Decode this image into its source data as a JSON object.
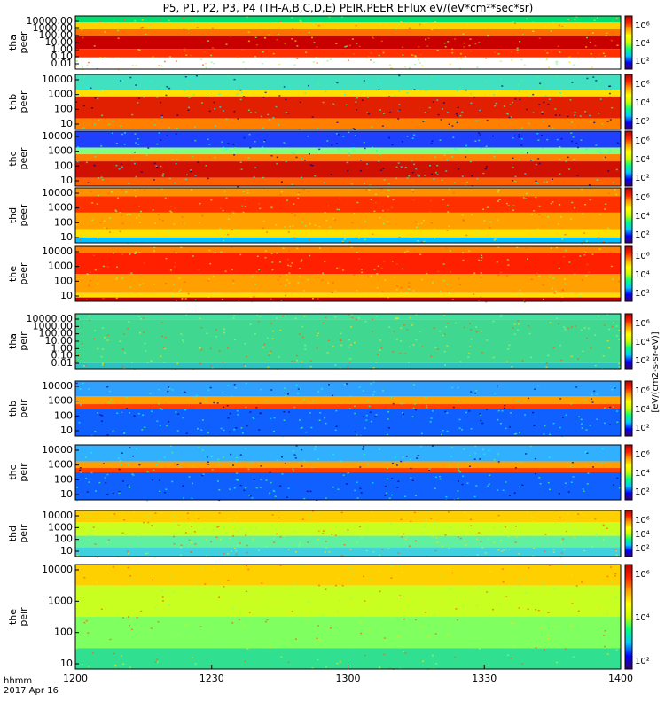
{
  "title": "P5, P1, P2, P3, P4 (TH-A,B,C,D,E) PEIR,PEER EFlux eV/(eV*cm²*sec*sr)",
  "footer": {
    "time_label": "hhmm",
    "date_label": "2017 Apr 16"
  },
  "chart_data": {
    "type": "heatmap",
    "title": "P5, P1, P2, P3, P4 (TH-A,B,C,D,E) PEIR,PEER EFlux eV/(eV*cm²*sec*sr)",
    "xlabel": "hhmm",
    "x_ticks": [
      "1200",
      "1230",
      "1300",
      "1330",
      "1400"
    ],
    "x_range": [
      "1200",
      "1400"
    ],
    "colorbar_label": "[eV/(cm2-s-sr-eV)]",
    "colorscale": [
      "#3b0066",
      "#0000ff",
      "#00c8ff",
      "#00ff7f",
      "#c8ff00",
      "#ffff00",
      "#ffa000",
      "#ff2000",
      "#c00000"
    ],
    "panels": [
      {
        "name": "tha peer",
        "ylabel": [
          "tha",
          "peer"
        ],
        "y_ticks": [
          "10000.00",
          "1000.00",
          "100.00",
          "10.00",
          "1.00",
          "0.10",
          "0.01"
        ],
        "y_log": true,
        "colorbar_ticks": [
          "10⁶",
          "10⁴",
          "10²"
        ]
      },
      {
        "name": "thb peer",
        "ylabel": [
          "thb",
          "peer"
        ],
        "y_ticks": [
          "10000",
          "1000",
          "100",
          "10"
        ],
        "y_log": true,
        "colorbar_ticks": [
          "10⁶",
          "10⁴",
          "10²"
        ]
      },
      {
        "name": "thc peer",
        "ylabel": [
          "thc",
          "peer"
        ],
        "y_ticks": [
          "10000",
          "1000",
          "100",
          "10"
        ],
        "y_log": true,
        "colorbar_ticks": [
          "10⁶",
          "10⁴",
          "10²"
        ]
      },
      {
        "name": "thd peer",
        "ylabel": [
          "thd",
          "peer"
        ],
        "y_ticks": [
          "10000",
          "1000",
          "100",
          "10"
        ],
        "y_log": true,
        "colorbar_ticks": [
          "10⁶",
          "10⁴",
          "10²"
        ]
      },
      {
        "name": "the peer",
        "ylabel": [
          "the",
          "peer"
        ],
        "y_ticks": [
          "10000",
          "1000",
          "100",
          "10"
        ],
        "y_log": true,
        "colorbar_ticks": [
          "10⁶",
          "10⁴",
          "10²"
        ]
      },
      {
        "name": "tha peir",
        "ylabel": [
          "tha",
          "peir"
        ],
        "y_ticks": [
          "10000.00",
          "1000.00",
          "100.00",
          "10.00",
          "1.00",
          "0.10",
          "0.01"
        ],
        "y_log": true,
        "colorbar_ticks": [
          "10⁶",
          "10⁴",
          "10²"
        ]
      },
      {
        "name": "thb peir",
        "ylabel": [
          "thb",
          "peir"
        ],
        "y_ticks": [
          "10000",
          "1000",
          "100",
          "10"
        ],
        "y_log": true,
        "colorbar_ticks": [
          "10⁶",
          "10⁴",
          "10²"
        ]
      },
      {
        "name": "thc peir",
        "ylabel": [
          "thc",
          "peir"
        ],
        "y_ticks": [
          "10000",
          "1000",
          "100",
          "10"
        ],
        "y_log": true,
        "colorbar_ticks": [
          "10⁶",
          "10⁴",
          "10²"
        ]
      },
      {
        "name": "thd peir",
        "ylabel": [
          "thd",
          "peir"
        ],
        "y_ticks": [
          "10000",
          "1000",
          "100",
          "10"
        ],
        "y_log": true,
        "colorbar_ticks": [
          "10⁶",
          "10⁴",
          "10²"
        ]
      },
      {
        "name": "the peir",
        "ylabel": [
          "the",
          "peir"
        ],
        "y_ticks": [
          "10000",
          "1000",
          "100",
          "10"
        ],
        "y_log": true,
        "colorbar_ticks": [
          "10⁶",
          "10⁴",
          "10²"
        ]
      }
    ]
  }
}
